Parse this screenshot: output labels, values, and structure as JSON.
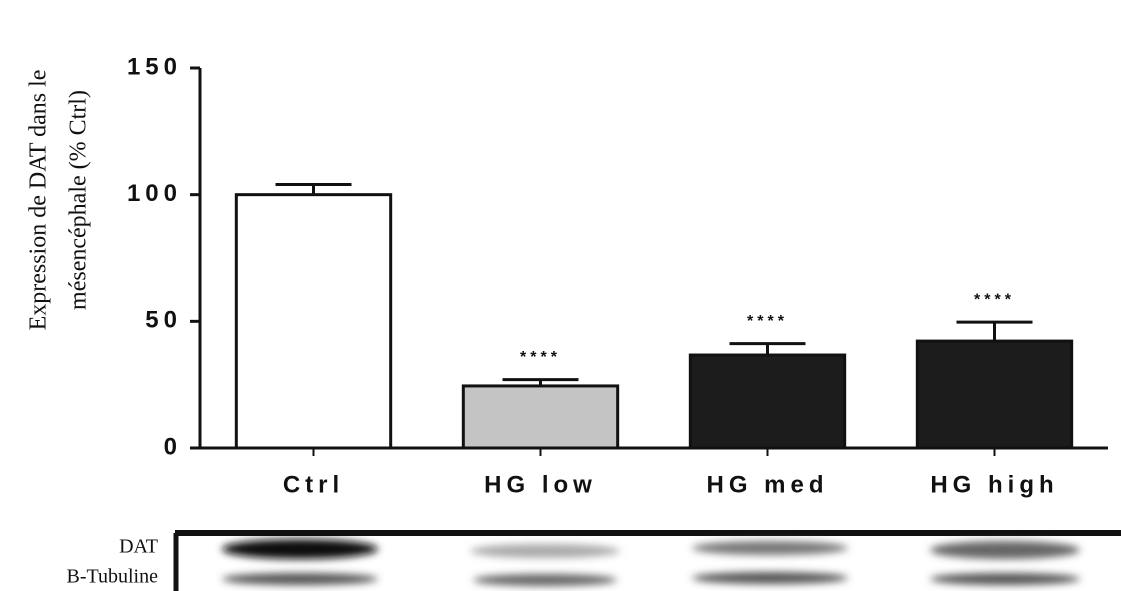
{
  "chart_data": {
    "type": "bar",
    "ylabel": [
      "Expression de DAT dans le",
      "mésencéphale (% Ctrl)"
    ],
    "categories": [
      "Ctrl",
      "HG low",
      "HG med",
      "HG high"
    ],
    "values": [
      100,
      24.5,
      36.7,
      42.2
    ],
    "errors": [
      4,
      2.5,
      4.5,
      7.5
    ],
    "significance": [
      null,
      "****",
      "****",
      "****"
    ],
    "colors": [
      "#ffffff",
      "#c4c4c4",
      "#1c1c1c",
      "#1c1c1c"
    ],
    "ylim": [
      0,
      150
    ],
    "yticks": [
      0,
      50,
      100,
      150
    ]
  },
  "blot": {
    "rows": [
      "DAT",
      "B-Tubuline"
    ]
  }
}
